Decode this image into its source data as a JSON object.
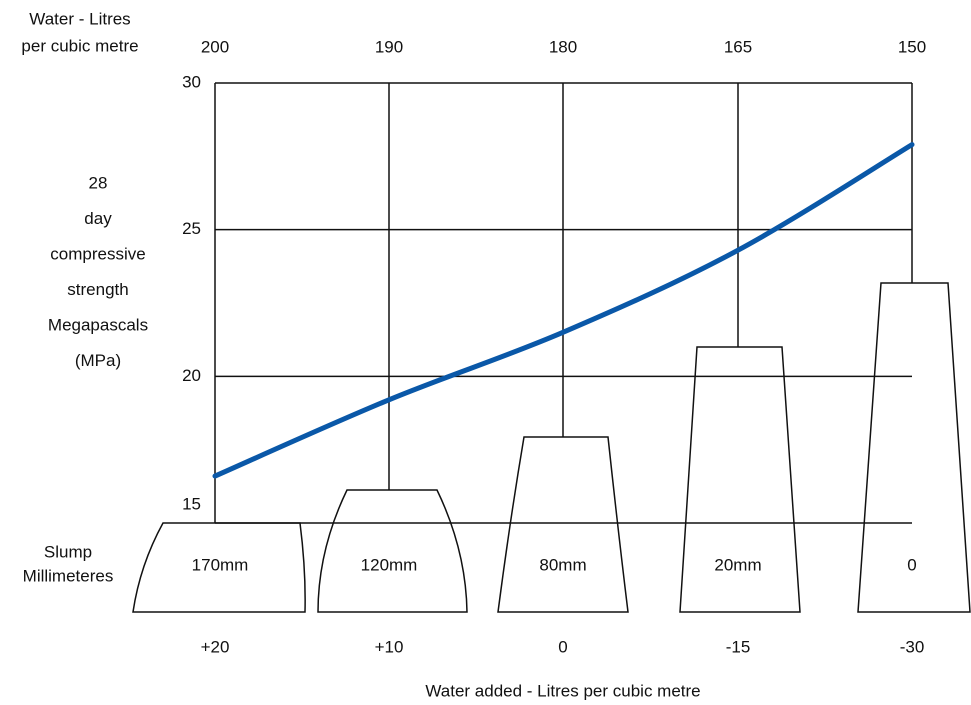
{
  "chart_data": {
    "type": "line",
    "top_axis_label": [
      "Water - Litres",
      "per cubic metre"
    ],
    "top_categories": [
      "200",
      "190",
      "180",
      "165",
      "150"
    ],
    "y_label": [
      "28",
      "day",
      "compressive",
      "strength",
      "Megapascals",
      "(MPa)"
    ],
    "slump_label": [
      "Slump",
      "Millimeteres"
    ],
    "slump_categories": [
      "170mm",
      "120mm",
      "80mm",
      "20mm",
      "0"
    ],
    "categories": [
      "+20",
      "+10",
      "0",
      "-15",
      "-30"
    ],
    "x_label": "Water added - Litres per cubic metre",
    "series": [
      {
        "color": "#0a58a8",
        "values": [
          16.6,
          19.2,
          21.5,
          24.3,
          27.9
        ]
      }
    ],
    "ylim": [
      15,
      30
    ],
    "yticks": [
      15,
      20,
      25,
      30
    ],
    "grid": true
  }
}
